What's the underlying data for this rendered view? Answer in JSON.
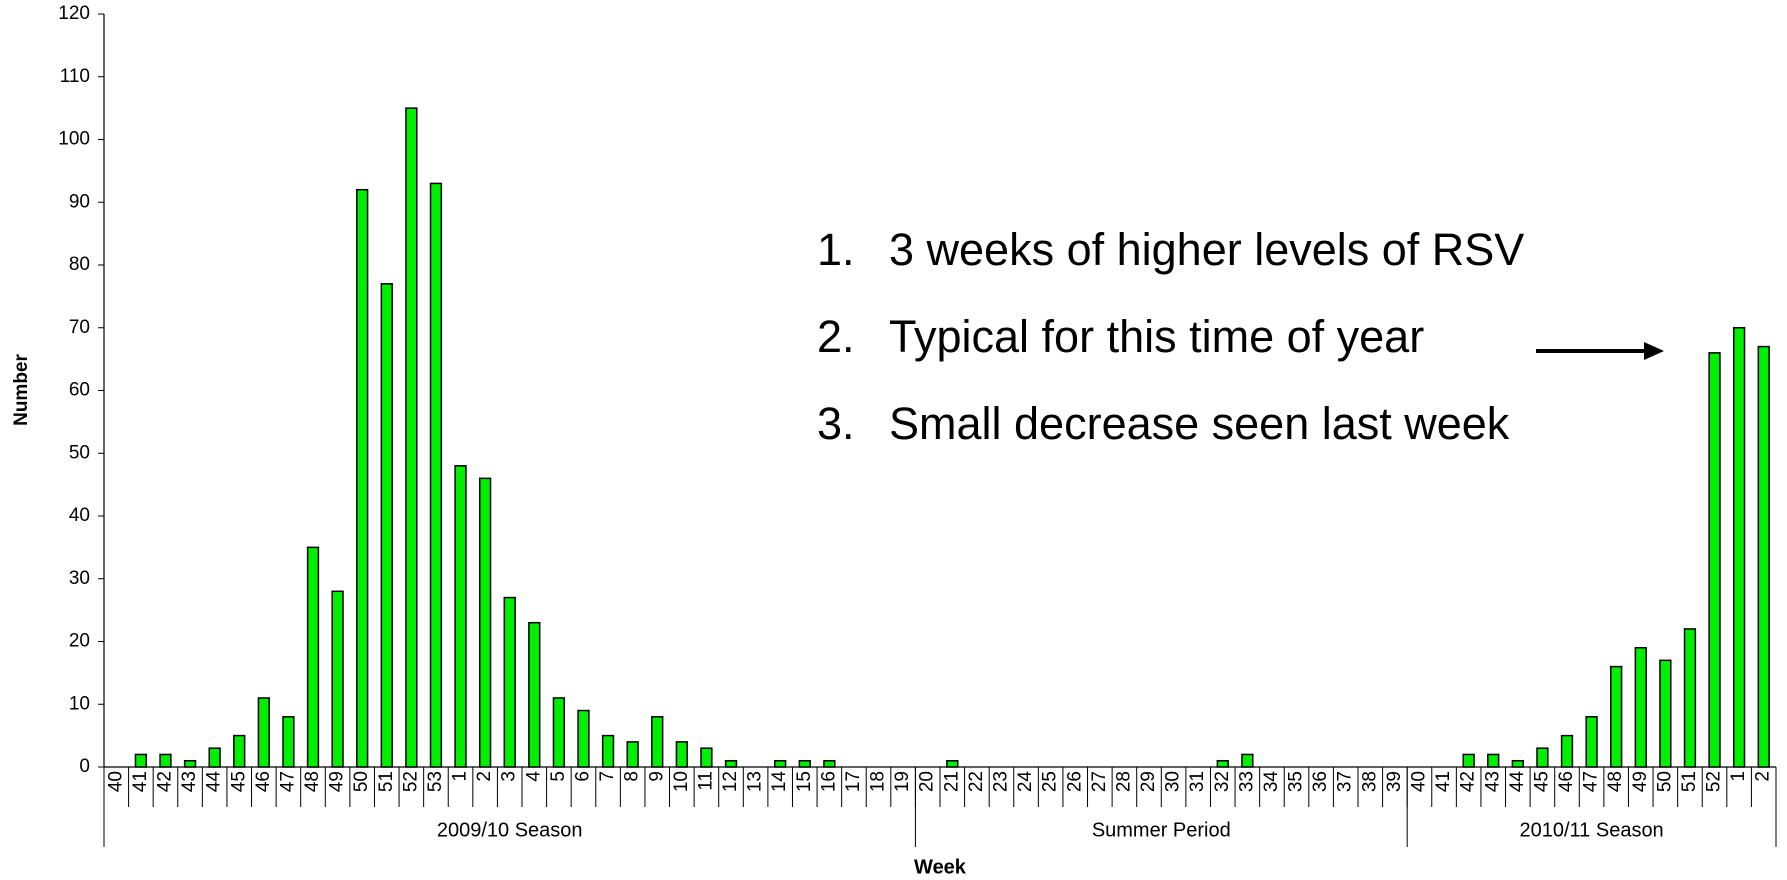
{
  "chart_data": {
    "type": "bar",
    "x_label": "Week",
    "y_label": "Number",
    "color": "#00ee00",
    "ylim": [
      0,
      120
    ],
    "yticks": [
      0,
      10,
      20,
      30,
      40,
      50,
      60,
      70,
      80,
      90,
      100,
      110,
      120
    ],
    "groups": [
      {
        "name": "2009/10 Season",
        "categories": [
          "40",
          "41",
          "42",
          "43",
          "44",
          "45",
          "46",
          "47",
          "48",
          "49",
          "50",
          "51",
          "52",
          "53",
          "1",
          "2",
          "3",
          "4",
          "5",
          "6",
          "7",
          "8",
          "9",
          "10",
          "11",
          "12",
          "13",
          "14",
          "15",
          "16",
          "17",
          "18",
          "19"
        ],
        "values": [
          0,
          2,
          2,
          1,
          3,
          5,
          11,
          8,
          35,
          28,
          92,
          77,
          105,
          93,
          48,
          46,
          27,
          23,
          11,
          9,
          5,
          4,
          8,
          4,
          3,
          1,
          0,
          1,
          1,
          1,
          0,
          0,
          0
        ]
      },
      {
        "name": "Summer Period",
        "categories": [
          "20",
          "21",
          "22",
          "23",
          "24",
          "25",
          "26",
          "27",
          "28",
          "29",
          "30",
          "31",
          "32",
          "33",
          "34",
          "35",
          "36",
          "37",
          "38",
          "39"
        ],
        "values": [
          0,
          1,
          0,
          0,
          0,
          0,
          0,
          0,
          0,
          0,
          0,
          0,
          1,
          2,
          0,
          0,
          0,
          0,
          0,
          0
        ]
      },
      {
        "name": "2010/11 Season",
        "categories": [
          "40",
          "41",
          "42",
          "43",
          "44",
          "45",
          "46",
          "47",
          "48",
          "49",
          "50",
          "51",
          "52",
          "1",
          "2"
        ],
        "values": [
          0,
          0,
          2,
          2,
          1,
          3,
          5,
          8,
          16,
          19,
          17,
          22,
          66,
          70,
          67
        ]
      }
    ],
    "annotations": [
      {
        "number": "1.",
        "text": "3 weeks of higher levels of RSV"
      },
      {
        "number": "2.",
        "text": "Typical for this time of year"
      },
      {
        "number": "3.",
        "text": "Small decrease seen last week"
      }
    ]
  }
}
